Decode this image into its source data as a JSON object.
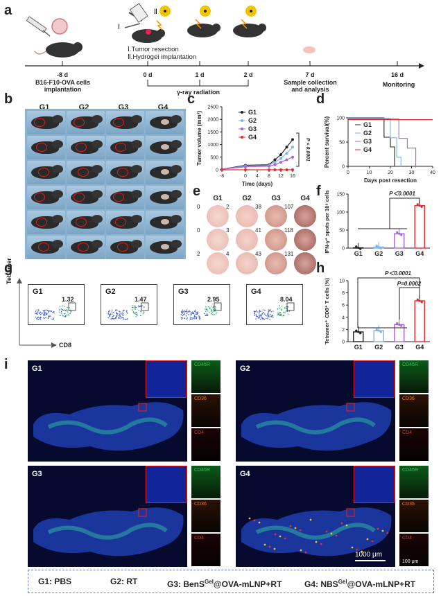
{
  "panels": {
    "a": "a",
    "b": "b",
    "c": "c",
    "d": "d",
    "e": "e",
    "f": "f",
    "g": "g",
    "h": "h",
    "i": "i"
  },
  "timeline": {
    "steps": [
      "Ⅰ.Tumor resection",
      "Ⅱ.Hydrogel implantation"
    ],
    "roman1": "Ⅰ",
    "roman2": "Ⅱ",
    "ticks": [
      {
        "label": "-8 d",
        "desc": "B16-F10-OVA cells\nimplantation"
      },
      {
        "label": "0 d",
        "desc": ""
      },
      {
        "label": "1 d",
        "desc": ""
      },
      {
        "label": "2 d",
        "desc": ""
      },
      {
        "label": "7 d",
        "desc": "Sample collection\nand analysis"
      },
      {
        "label": "16 d",
        "desc": "Monitoring"
      }
    ],
    "radiation": "γ-ray radiation"
  },
  "groups": [
    "G1",
    "G2",
    "G3",
    "G4"
  ],
  "colors": {
    "G1": "#222222",
    "G2": "#7fb2e5",
    "G3": "#b05fd6",
    "G4": "#e8262a",
    "accent": "#e02020",
    "border": "#5a7bbd"
  },
  "tumor_chart": {
    "type": "line",
    "ylabel": "Tumor volume (mm³)",
    "xlabel": "Time (days)",
    "x": [
      -8,
      0,
      8,
      10,
      12,
      14,
      16
    ],
    "xticks": [
      "-8",
      "0",
      "4",
      "8",
      "12",
      "16"
    ],
    "yticks": [
      "0",
      "500",
      "1000",
      "1500",
      "2000",
      "2500"
    ],
    "ylim": [
      0,
      2500
    ],
    "series": [
      {
        "name": "G1",
        "values": [
          20,
          180,
          200,
          400,
          600,
          900,
          1200
        ]
      },
      {
        "name": "G2",
        "values": [
          20,
          150,
          170,
          300,
          450,
          650,
          900
        ]
      },
      {
        "name": "G3",
        "values": [
          20,
          120,
          140,
          200,
          300,
          400,
          500
        ]
      },
      {
        "name": "G4",
        "values": [
          0,
          0,
          0,
          0,
          0,
          0,
          0
        ]
      }
    ],
    "pvalue": "P < 0.0001"
  },
  "survival_chart": {
    "type": "line",
    "ylabel": "Percent survival(%)",
    "xlabel": "Days post resection",
    "xticks": [
      "0",
      "10",
      "20",
      "30",
      "40"
    ],
    "yticks": [
      "0",
      "50",
      "100"
    ],
    "series": [
      {
        "name": "G1",
        "steps": [
          [
            0,
            100
          ],
          [
            17,
            100
          ],
          [
            17,
            60
          ],
          [
            20,
            60
          ],
          [
            20,
            40
          ],
          [
            22,
            40
          ],
          [
            22,
            0
          ]
        ]
      },
      {
        "name": "G2",
        "steps": [
          [
            0,
            100
          ],
          [
            20,
            100
          ],
          [
            20,
            60
          ],
          [
            23,
            60
          ],
          [
            23,
            20
          ],
          [
            25,
            20
          ],
          [
            25,
            0
          ]
        ]
      },
      {
        "name": "G3",
        "steps": [
          [
            0,
            100
          ],
          [
            24,
            100
          ],
          [
            24,
            60
          ],
          [
            28,
            60
          ],
          [
            28,
            40
          ],
          [
            32,
            40
          ],
          [
            32,
            0
          ]
        ]
      },
      {
        "name": "G4",
        "steps": [
          [
            0,
            100
          ],
          [
            40,
            100
          ]
        ]
      }
    ]
  },
  "elispot": {
    "counts": [
      [
        "0",
        "2",
        "38",
        "107"
      ],
      [
        "0",
        "3",
        "41",
        "118"
      ],
      [
        "2",
        "4",
        "43",
        "131"
      ]
    ]
  },
  "ifn_chart": {
    "type": "bar",
    "ylabel": "IFN-γ⁺ spots per 10⁶ cells",
    "categories": [
      "G1",
      "G2",
      "G3",
      "G4"
    ],
    "values": [
      1,
      3,
      40,
      118
    ],
    "yticks": [
      "0",
      "50",
      "100",
      "150"
    ],
    "ylim": [
      0,
      150
    ],
    "pvalue": "P＜0.0001"
  },
  "flow": {
    "ylabel": "Tetramer",
    "xlabel": "CD8",
    "values": [
      "1.32",
      "1.47",
      "2.95",
      "8.04"
    ]
  },
  "tetramer_chart": {
    "type": "bar",
    "ylabel": "Tetramer⁺ CD8⁺ T cells (%)",
    "categories": [
      "G1",
      "G2",
      "G3",
      "G4"
    ],
    "values": [
      1.6,
      1.8,
      2.8,
      6.7
    ],
    "yticks": [
      "0",
      "2",
      "4",
      "6",
      "8",
      "10"
    ],
    "ylim": [
      0,
      10
    ],
    "p1": "P＜0.0001",
    "p2": "P=0.0002"
  },
  "imaging": {
    "markers": [
      "CD45R",
      "CD36",
      "CD4"
    ],
    "scale_main": "1000 μm",
    "scale_inset": "100 μm"
  },
  "legend": {
    "g1": "G1: PBS",
    "g2": "G2: RT",
    "g3_pre": "G3: BenS",
    "g3_sup": "Gel",
    "g3_post": "@OVA-mLNP+RT",
    "g4_pre": "G4: NBS",
    "g4_sup": "Gel",
    "g4_post": "@OVA-mLNP+RT"
  }
}
